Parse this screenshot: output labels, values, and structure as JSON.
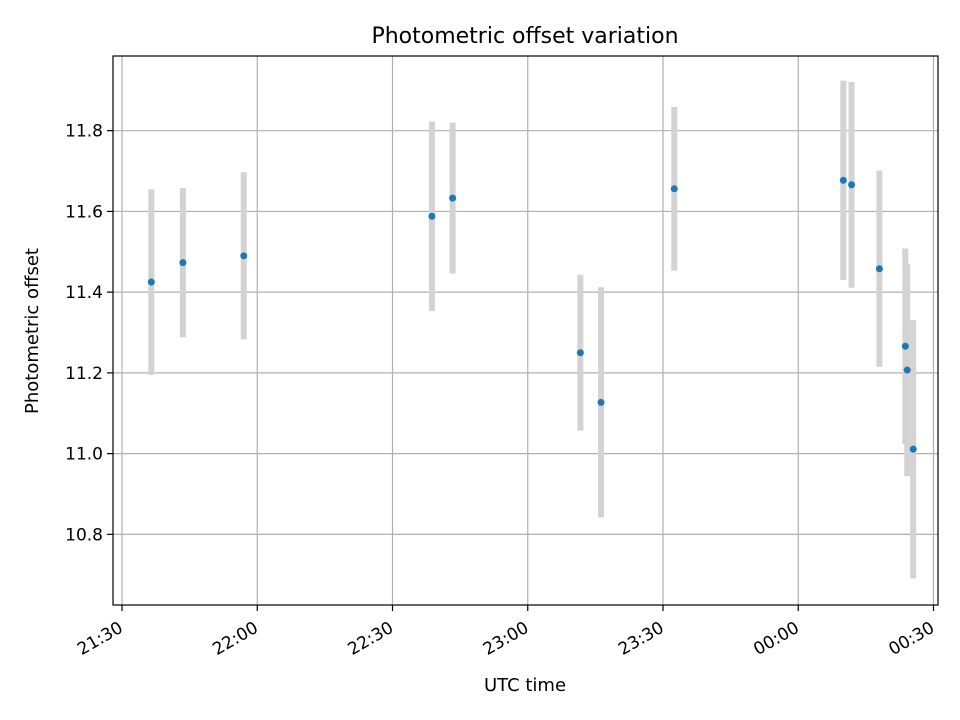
{
  "chart_data": {
    "type": "scatter",
    "title": "Photometric offset variation",
    "xlabel": "UTC time",
    "ylabel": "Photometric offset",
    "x_ticks": [
      "21:30",
      "22:00",
      "22:30",
      "23:00",
      "23:30",
      "00:00",
      "00:30"
    ],
    "x_tick_minutes": [
      0,
      30,
      60,
      90,
      120,
      150,
      180
    ],
    "y_ticks": [
      "10.8",
      "11.0",
      "11.2",
      "11.4",
      "11.6",
      "11.8"
    ],
    "xlim_minutes": [
      -2,
      181
    ],
    "ylim": [
      10.625,
      11.985
    ],
    "grid": true,
    "point_color": "#1f77b4",
    "errorbar_color": "#d3d3d3",
    "points": [
      {
        "time": "21:36:30",
        "minutes": 6.5,
        "y": 11.425,
        "err": 0.23
      },
      {
        "time": "21:43:30",
        "minutes": 13.5,
        "y": 11.473,
        "err": 0.185
      },
      {
        "time": "21:57:00",
        "minutes": 27.0,
        "y": 11.49,
        "err": 0.207
      },
      {
        "time": "22:38:45",
        "minutes": 68.75,
        "y": 11.588,
        "err": 0.235
      },
      {
        "time": "22:43:20",
        "minutes": 73.33,
        "y": 11.633,
        "err": 0.187
      },
      {
        "time": "23:11:40",
        "minutes": 101.67,
        "y": 11.25,
        "err": 0.193
      },
      {
        "time": "23:16:15",
        "minutes": 106.25,
        "y": 11.127,
        "err": 0.285
      },
      {
        "time": "23:32:30",
        "minutes": 122.5,
        "y": 11.656,
        "err": 0.203
      },
      {
        "time": "00:10:00",
        "minutes": 160.0,
        "y": 11.677,
        "err": 0.247
      },
      {
        "time": "00:11:50",
        "minutes": 161.83,
        "y": 11.666,
        "err": 0.255
      },
      {
        "time": "00:18:00",
        "minutes": 168.0,
        "y": 11.458,
        "err": 0.243
      },
      {
        "time": "00:23:45",
        "minutes": 173.75,
        "y": 11.266,
        "err": 0.242
      },
      {
        "time": "00:24:10",
        "minutes": 174.17,
        "y": 11.207,
        "err": 0.263
      },
      {
        "time": "00:25:30",
        "minutes": 175.5,
        "y": 11.011,
        "err": 0.32
      }
    ]
  }
}
